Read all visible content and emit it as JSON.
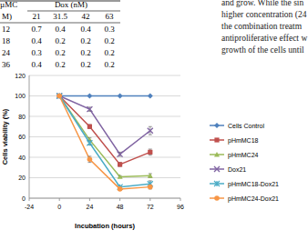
{
  "table": {
    "header": [
      "µMC",
      "Dox (nM)"
    ],
    "columns": [
      "M)",
      "21",
      "31.5",
      "42",
      "63"
    ],
    "rows": [
      [
        "12",
        "0.7",
        "0.4",
        "0.4",
        "0.3"
      ],
      [
        "18",
        "0.4",
        "0.2",
        "0.2",
        "0.2"
      ],
      [
        "24",
        "0.3",
        "0.2",
        "0.2",
        "0.2"
      ],
      [
        "36",
        "0.4",
        "0.2",
        "0.2",
        "0.2"
      ]
    ]
  },
  "text_lines": [
    "and grow. While the sin",
    "higher concentration (24",
    "the combination treatm",
    "antiproliferative effect w",
    "growth of the cells until"
  ],
  "chart_data": {
    "type": "line",
    "x_label": "Incubation (hours)",
    "y_label": "Cells viability (%)",
    "x": [
      0,
      24,
      48,
      72
    ],
    "xlim": [
      -24,
      96
    ],
    "xticks": [
      -24,
      0,
      24,
      48,
      72,
      96
    ],
    "ylim": [
      0,
      120
    ],
    "yticks": [
      0,
      20,
      40,
      60,
      80,
      100,
      120
    ],
    "grid": true,
    "legend": "right",
    "series": [
      {
        "name": "Cells Control",
        "color": "#4f81bd",
        "marker": "diamond",
        "values": [
          100,
          100,
          100,
          100
        ],
        "errors": [
          0,
          0,
          0,
          0
        ]
      },
      {
        "name": "pHmMC18",
        "color": "#c0504d",
        "marker": "square",
        "values": [
          100,
          70,
          33,
          45
        ],
        "errors": [
          0,
          2,
          2,
          3
        ]
      },
      {
        "name": "pHmMC24",
        "color": "#9bbb59",
        "marker": "triangle",
        "values": [
          100,
          57,
          21,
          22
        ],
        "errors": [
          0,
          2,
          1,
          2
        ]
      },
      {
        "name": "Dox21",
        "color": "#8064a2",
        "marker": "x",
        "values": [
          100,
          87,
          43,
          66
        ],
        "errors": [
          0,
          2,
          2,
          4
        ]
      },
      {
        "name": "pHmMC18-Dox21",
        "color": "#4bacc6",
        "marker": "star",
        "values": [
          100,
          54,
          11,
          14
        ],
        "errors": [
          0,
          2,
          1,
          3
        ]
      },
      {
        "name": "pHmMC24-Dox21",
        "color": "#f79646",
        "marker": "circle",
        "values": [
          100,
          38,
          9,
          11
        ],
        "errors": [
          0,
          3,
          1,
          2
        ]
      }
    ]
  }
}
